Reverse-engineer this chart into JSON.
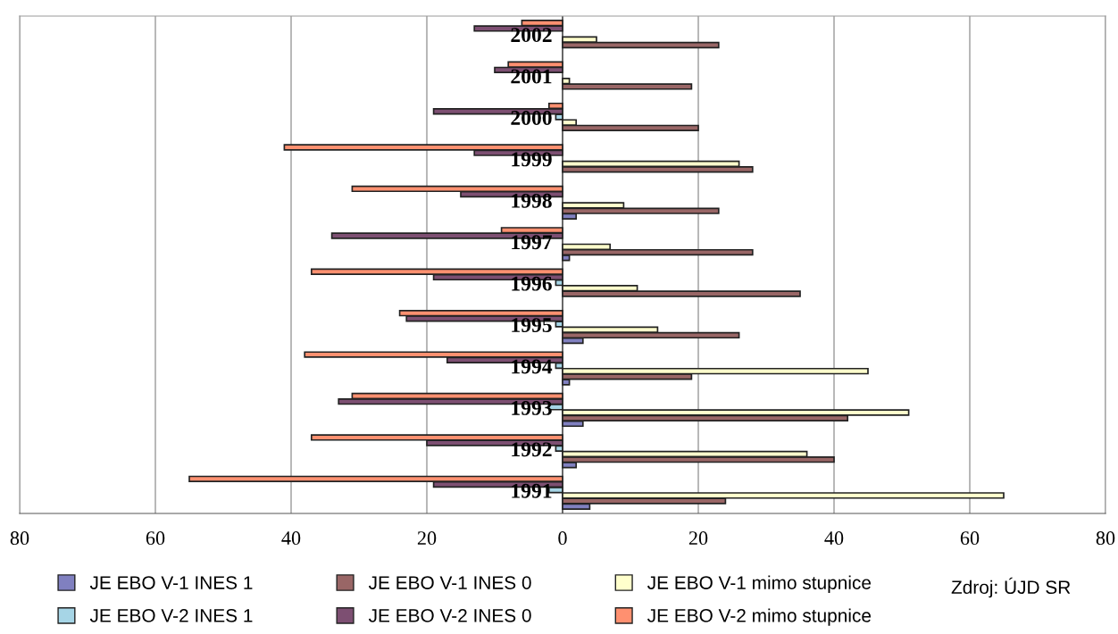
{
  "chart_data": {
    "type": "bar",
    "orientation": "horizontal",
    "categories": [
      "2002",
      "2001",
      "2000",
      "1999",
      "1998",
      "1997",
      "1996",
      "1995",
      "1994",
      "1993",
      "1992",
      "1991"
    ],
    "series": [
      {
        "name": "JE EBO V-1 INES 1",
        "color": "#8080c0",
        "values": [
          null,
          null,
          null,
          null,
          2,
          1,
          null,
          3,
          1,
          3,
          2,
          4
        ]
      },
      {
        "name": "JE EBO V-1 INES 0",
        "color": "#996666",
        "values": [
          23,
          19,
          20,
          28,
          23,
          28,
          35,
          26,
          19,
          42,
          40,
          24
        ]
      },
      {
        "name": "JE EBO V-1 mimo stupnice",
        "color": "#ffffcc",
        "values": [
          5,
          1,
          2,
          26,
          9,
          7,
          11,
          14,
          45,
          51,
          36,
          65
        ]
      },
      {
        "name": "JE EBO V-2 INES 1",
        "color": "#a6d5e6",
        "values": [
          null,
          null,
          -1,
          null,
          null,
          null,
          -1,
          -1,
          -1,
          -2,
          -1,
          -2
        ]
      },
      {
        "name": "JE EBO V-2 INES 0",
        "color": "#7d4f72",
        "values": [
          -13,
          -10,
          -19,
          -13,
          -15,
          -34,
          -19,
          -23,
          -17,
          -33,
          -20,
          -19
        ]
      },
      {
        "name": "JE EBO V-2 mimo stupnice",
        "color": "#ff9070",
        "values": [
          -6,
          -8,
          -2,
          -41,
          -31,
          -9,
          -37,
          -24,
          -38,
          -31,
          -37,
          -55
        ]
      }
    ],
    "xlim": [
      -80,
      80
    ],
    "xticks": [
      {
        "value": -80,
        "label": "80"
      },
      {
        "value": -60,
        "label": "60"
      },
      {
        "value": -40,
        "label": "40"
      },
      {
        "value": -20,
        "label": "20"
      },
      0,
      20,
      40,
      60,
      80
    ],
    "grid": "x",
    "legend": "bottom",
    "annotations": [
      "Zdroj: ÚJD SR"
    ]
  }
}
